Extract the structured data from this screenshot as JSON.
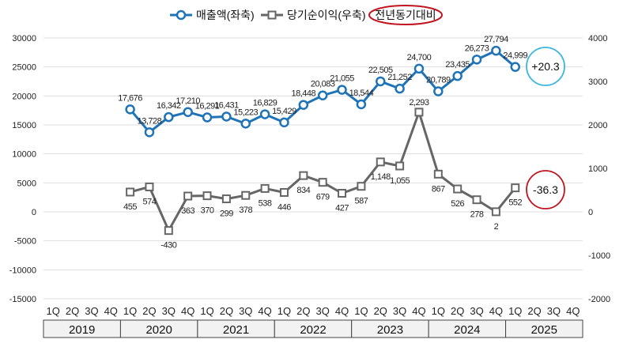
{
  "chart_data": {
    "type": "line",
    "legend": {
      "placement": "top-center",
      "items": [
        {
          "key": "revenue",
          "label": "매출액(좌축)"
        },
        {
          "key": "profit",
          "label": "당기순이익(우축)"
        },
        {
          "key": "yoy",
          "label": "전년동기대비"
        }
      ]
    },
    "quarters": [
      "1Q",
      "2Q",
      "3Q",
      "4Q",
      "1Q",
      "2Q",
      "3Q",
      "4Q",
      "1Q",
      "2Q",
      "3Q",
      "4Q",
      "1Q",
      "2Q",
      "3Q",
      "4Q",
      "1Q",
      "2Q",
      "3Q",
      "4Q",
      "1Q",
      "2Q",
      "3Q",
      "4Q",
      "1Q",
      "2Q",
      "3Q",
      "4Q"
    ],
    "years": [
      "2019",
      "2020",
      "2021",
      "2022",
      "2023",
      "2024",
      "2025"
    ],
    "y_left": {
      "min": -15000,
      "max": 30000,
      "ticks": [
        "30000",
        "25000",
        "20000",
        "15000",
        "10000",
        "5000",
        "0",
        "-5000",
        "-10000",
        "-15000"
      ]
    },
    "y_right": {
      "min": -2000,
      "max": 4000,
      "ticks": [
        "4000",
        "3000",
        "2000",
        "1000",
        "0",
        "-1000",
        "-2000"
      ]
    },
    "series": [
      {
        "name": "매출액(좌축)",
        "axis": "left",
        "color": "#1f73b7",
        "start_index": 4,
        "values": [
          17676,
          13728,
          16342,
          17210,
          16291,
          16431,
          15223,
          16829,
          15429,
          18448,
          20083,
          21055,
          18544,
          22505,
          21252,
          24700,
          20789,
          23435,
          26273,
          27794,
          24999
        ],
        "labels": [
          "17,676",
          "13,728",
          "16,342",
          "17,210",
          "16,291",
          "16,431",
          "15,223",
          "16,829",
          "15,429",
          "18,448",
          "20,083",
          "21,055",
          "18,544",
          "22,505",
          "21,252",
          "24,700",
          "20,789",
          "23,435",
          "26,273",
          "27,794",
          "24,999"
        ]
      },
      {
        "name": "당기순이익(우축)",
        "axis": "right",
        "color": "#666666",
        "start_index": 4,
        "values": [
          455,
          574,
          -430,
          363,
          370,
          299,
          378,
          538,
          446,
          834,
          679,
          427,
          587,
          1148,
          1055,
          2293,
          867,
          526,
          278,
          2,
          552
        ],
        "labels": [
          "455",
          "574",
          "-430",
          "363",
          "370",
          "299",
          "378",
          "538",
          "446",
          "834",
          "679",
          "427",
          "587",
          "1,148",
          "1,055",
          "2,293",
          "867",
          "526",
          "278",
          "2",
          "552"
        ]
      }
    ],
    "callouts": [
      {
        "text": "+20.3",
        "color": "#38b6e0"
      },
      {
        "text": "-36.3",
        "color": "#c0151f"
      }
    ]
  }
}
